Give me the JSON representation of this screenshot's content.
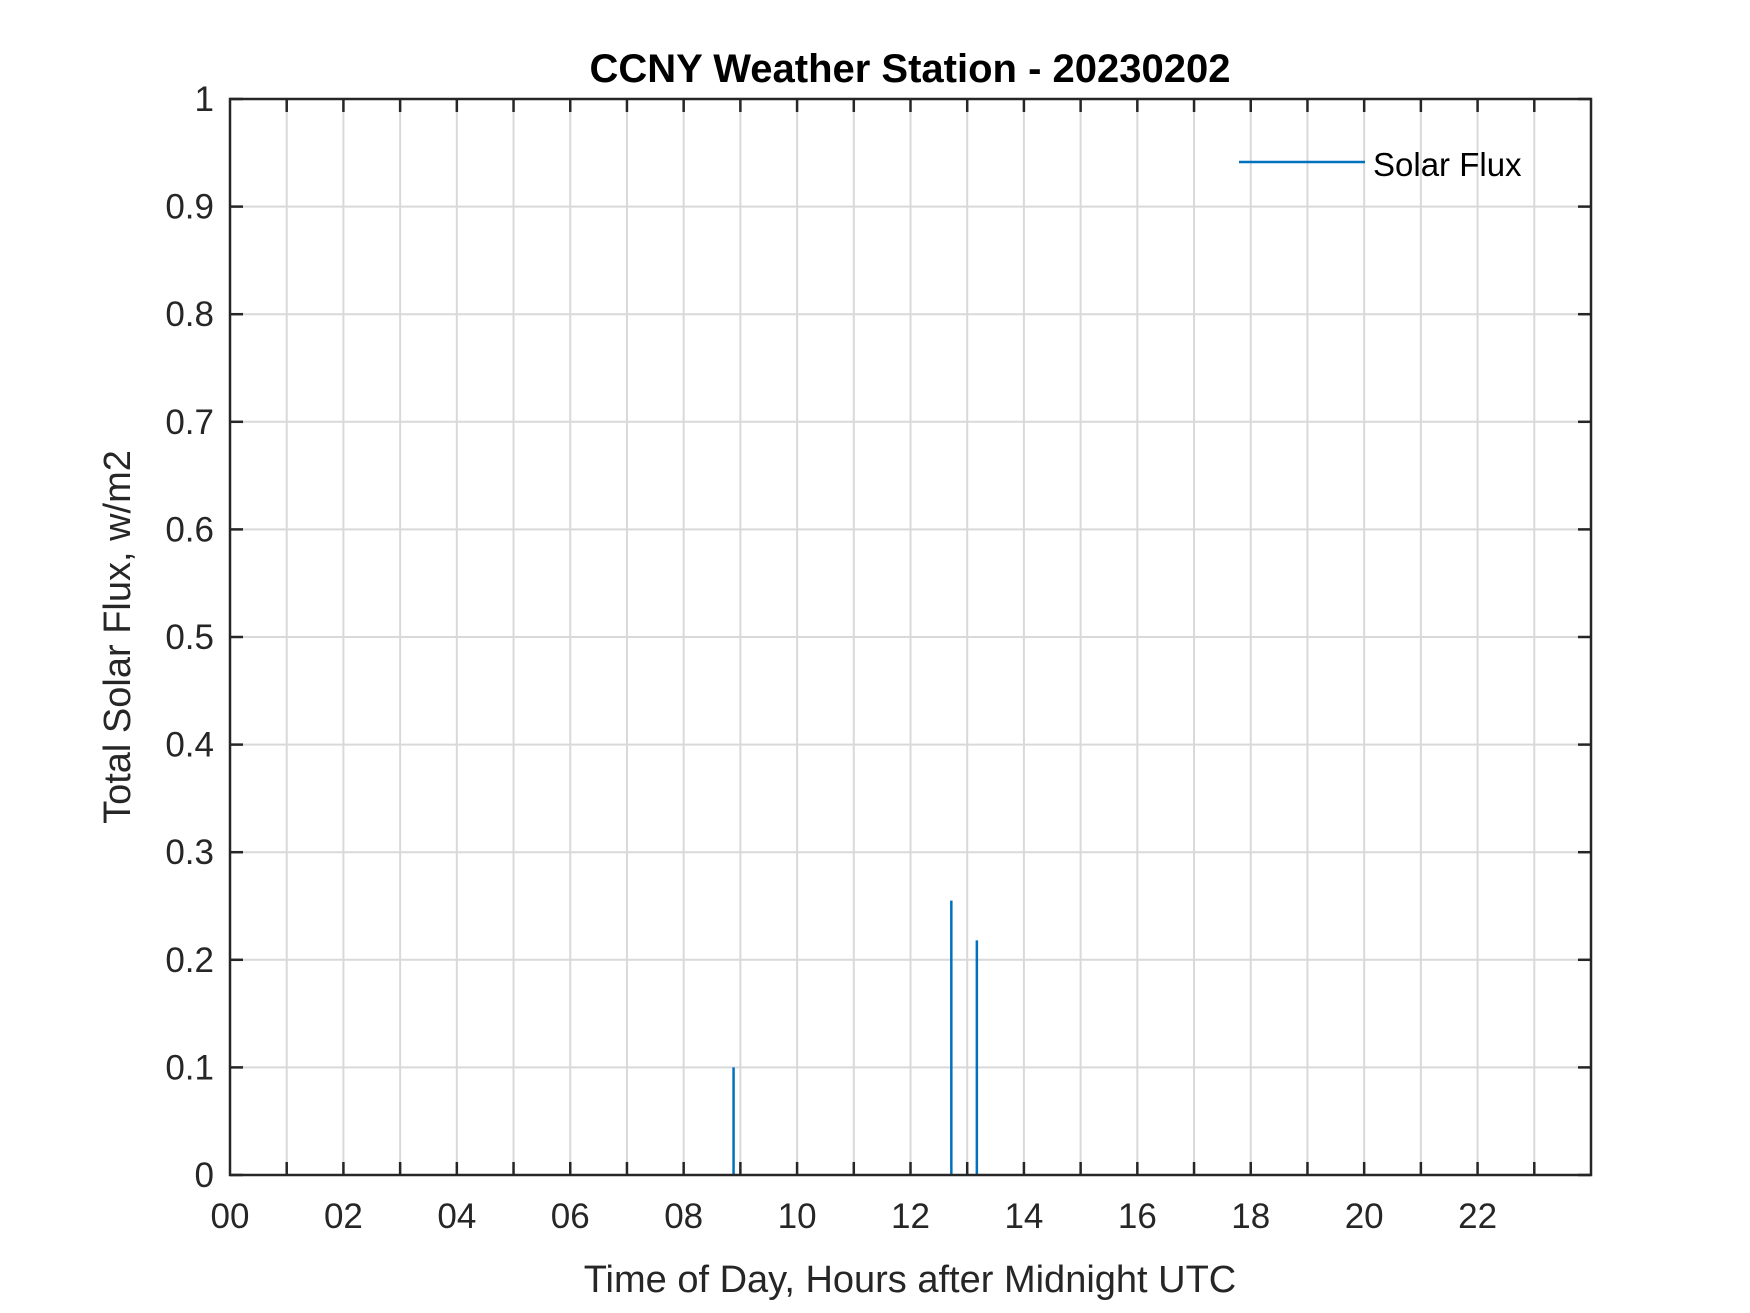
{
  "chart_data": {
    "type": "line",
    "title": "CCNY Weather Station - 20230202",
    "xlabel": "Time of Day, Hours after Midnight UTC",
    "ylabel": "Total Solar Flux, w/m2",
    "xlim": [
      0,
      24
    ],
    "ylim": [
      0,
      1
    ],
    "x_tick_values": [
      0,
      2,
      4,
      6,
      8,
      10,
      12,
      14,
      16,
      18,
      20,
      22
    ],
    "x_tick_labels": [
      "00",
      "02",
      "04",
      "06",
      "08",
      "10",
      "12",
      "14",
      "16",
      "18",
      "20",
      "22"
    ],
    "y_tick_values": [
      0,
      0.1,
      0.2,
      0.3,
      0.4,
      0.5,
      0.6,
      0.7,
      0.8,
      0.9,
      1
    ],
    "y_tick_labels": [
      "0",
      "0.1",
      "0.2",
      "0.3",
      "0.4",
      "0.5",
      "0.6",
      "0.7",
      "0.8",
      "0.9",
      "1"
    ],
    "grid": true,
    "grid_x_step_hours": 1,
    "legend_position": "top-right",
    "series": [
      {
        "name": "Solar Flux",
        "color": "#0072BD",
        "spikes": [
          {
            "x": 8.88,
            "y": 0.1
          },
          {
            "x": 12.72,
            "y": 0.255
          },
          {
            "x": 13.17,
            "y": 0.218
          }
        ]
      }
    ]
  }
}
